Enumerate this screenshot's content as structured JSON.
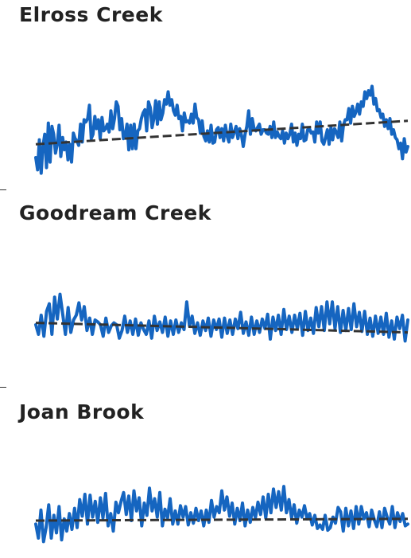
{
  "chart_data": [
    {
      "type": "line",
      "title": "Elross Creek",
      "series": [
        {
          "values": [
            -2.0,
            -3.1,
            -0.4,
            -3.4,
            -1.0,
            0.1,
            -2.9,
            1.1,
            -2.4,
            0.8,
            0.1,
            -1.6,
            -0.8,
            0.9,
            -1.9,
            -0.2,
            -1.3,
            -0.6,
            -2.2,
            -0.8,
            -2.4,
            0.2,
            -0.3,
            -0.5,
            -0.9,
            1.0,
            -0.6,
            1.4,
            1.2,
            1.5,
            2.7,
            -0.3,
            0.1,
            1.7,
            0.6,
            1.4,
            -0.3,
            1.6,
            0.4,
            0.6,
            1.0,
            0.3,
            2.2,
            0.6,
            1.5,
            3.0,
            2.6,
            0.5,
            1.5,
            -0.3,
            0.0,
            1.0,
            -1.3,
            0.9,
            -1.2,
            1.0,
            -1.2,
            0.4,
            0.6,
            1.5,
            2.0,
            2.3,
            0.4,
            3.0,
            2.5,
            0.7,
            1.5,
            3.1,
            1.0,
            3.0,
            1.4,
            2.0,
            3.2,
            2.8,
            3.9,
            2.7,
            3.2,
            2.2,
            1.8,
            2.7,
            1.5,
            1.7,
            0.4,
            2.0,
            1.2,
            1.3,
            1.1,
            1.9,
            1.1,
            2.8,
            1.6,
            1.4,
            0.2,
            1.3,
            -0.1,
            -0.5,
            0.4,
            -0.6,
            0.9,
            -0.7,
            -0.6,
            0.5,
            0.7,
            -0.2,
            0.6,
            -0.5,
            0.9,
            -0.1,
            -0.6,
            1.0,
            -0.2,
            0.3,
            0.8,
            -0.3,
            0.6,
            0.0,
            -1.0,
            0.1,
            0.8,
            2.2,
            0.1,
            1.5,
            0.6,
            0.4,
            0.7,
            1.0,
            0.1,
            0.5,
            0.5,
            0.2,
            0.1,
            0.8,
            -0.2,
            1.2,
            -0.2,
            0.3,
            -0.1,
            -0.3,
            0.4,
            -0.7,
            0.2,
            -0.3,
            0.1,
            1.0,
            -0.6,
            0.2,
            -0.9,
            0.1,
            -0.3,
            1.0,
            -0.5,
            -0.4,
            0.5,
            0.6,
            0.2,
            0.3,
            -0.6,
            1.2,
            0.2,
            1.2,
            -0.5,
            -0.8,
            -0.2,
            0.5,
            -0.8,
            0.7,
            -0.4,
            0.6,
            0.3,
            -0.2,
            1.2,
            -0.5,
            0.9,
            1.4,
            1.4,
            2.4,
            1.1,
            2.6,
            1.7,
            2.1,
            2.8,
            1.9,
            3.0,
            2.6,
            3.9,
            3.3,
            4.0,
            3.6,
            4.4,
            2.8,
            3.3,
            2.2,
            2.3,
            1.6,
            1.9,
            0.8,
            1.4,
            0.6,
            1.5,
            0.1,
            0.5,
            -0.2,
            -0.4,
            -1.2,
            -0.7,
            -2.1,
            -0.3,
            -1.5,
            -1.0
          ]
        },
        {
          "name": "trend",
          "values_start": -0.8,
          "values_end": 1.3
        }
      ]
    },
    {
      "type": "line",
      "title": "Goodream Creek",
      "series": [
        {
          "values": [
            0.0,
            -1.0,
            1.0,
            -1.2,
            1.4,
            2.2,
            -1.0,
            2.9,
            0.6,
            3.2,
            1.1,
            -1.0,
            1.8,
            -0.8,
            0.5,
            1.0,
            2.3,
            0.5,
            1.9,
            -0.6,
            0.7,
            -1.0,
            0.5,
            0.3,
            0.0,
            -1.2,
            0.7,
            -0.8,
            -0.1,
            0.2,
            0.0,
            -1.4,
            -0.6,
            0.9,
            -0.8,
            0.4,
            -1.0,
            0.6,
            -1.1,
            0.2,
            -0.5,
            -1.0,
            0.4,
            -1.4,
            0.9,
            -0.6,
            0.3,
            -0.8,
            0.8,
            -1.2,
            0.4,
            -1.0,
            0.5,
            -0.8,
            0.2,
            -0.5,
            2.4,
            -0.1,
            0.9,
            -0.9,
            0.2,
            -1.1,
            0.4,
            -0.6,
            0.7,
            -1.2,
            0.5,
            -0.5,
            0.6,
            -1.3,
            0.7,
            -0.9,
            0.5,
            -1.0,
            0.6,
            -0.4,
            1.3,
            -0.9,
            0.3,
            -1.1,
            0.8,
            -1.0,
            0.4,
            -0.8,
            0.6,
            -0.4,
            1.1,
            -1.5,
            0.8,
            -0.6,
            1.0,
            -1.0,
            1.6,
            -0.5,
            0.9,
            -0.8,
            1.0,
            -0.4,
            1.2,
            -1.1,
            1.4,
            -0.6,
            0.7,
            -0.9,
            1.8,
            -0.2,
            1.9,
            -0.6,
            2.4,
            0.1,
            2.4,
            -0.4,
            1.9,
            -0.8,
            1.5,
            -0.6,
            1.7,
            -0.5,
            2.2,
            -0.2,
            1.3,
            -0.7,
            1.4,
            -1.0,
            0.7,
            -1.2,
            0.9,
            -0.9,
            0.8,
            -1.0,
            1.2,
            -1.3,
            0.4,
            -1.5,
            0.8,
            -0.4,
            1.0,
            -1.7,
            0.5
          ]
        },
        {
          "name": "trend",
          "values_start": 0.2,
          "values_end": -0.8
        }
      ]
    },
    {
      "type": "line",
      "title": "Joan Brook",
      "series": [
        {
          "values": [
            -0.4,
            -2.0,
            1.2,
            -2.4,
            -0.8,
            1.8,
            -2.0,
            0.6,
            -1.4,
            1.6,
            -2.2,
            0.2,
            -1.2,
            0.8,
            -1.0,
            1.4,
            -0.8,
            2.4,
            0.5,
            3.0,
            -0.4,
            2.9,
            0.4,
            2.2,
            -0.2,
            2.6,
            0.3,
            3.1,
            -0.6,
            0.8,
            -1.2,
            2.1,
            0.9,
            2.2,
            3.2,
            0.7,
            2.8,
            0.0,
            3.4,
            1.1,
            2.6,
            -0.6,
            2.0,
            0.6,
            3.7,
            1.1,
            2.5,
            0.4,
            3.2,
            -0.6,
            1.3,
            0.3,
            2.5,
            -0.4,
            1.1,
            -0.4,
            1.7,
            0.4,
            1.6,
            -0.5,
            0.9,
            -0.3,
            1.4,
            0.0,
            1.1,
            -0.6,
            1.2,
            -0.2,
            2.3,
            0.4,
            1.6,
            0.9,
            3.4,
            1.2,
            2.7,
            0.5,
            2.0,
            -0.4,
            1.4,
            0.0,
            2.0,
            -0.6,
            1.2,
            -0.2,
            1.5,
            0.3,
            2.1,
            0.7,
            2.7,
            0.3,
            3.0,
            0.9,
            3.6,
            1.5,
            3.3,
            1.2,
            3.9,
            0.9,
            2.4,
            0.3,
            1.8,
            -0.3,
            1.2,
            0.4,
            1.7,
            0.2,
            0.8,
            -0.5,
            0.6,
            -0.9,
            -0.5,
            -1.0,
            0.6,
            -1.1,
            -0.8,
            0.4,
            -0.3,
            1.5,
            1.0,
            -1.2,
            1.4,
            -0.6,
            1.1,
            -0.9,
            1.6,
            -0.4,
            1.6,
            0.2,
            0.9,
            -0.7,
            1.2,
            0.1,
            -0.7,
            1.0,
            -0.8,
            1.4,
            0.4,
            -0.4,
            1.6,
            -0.8,
            0.9,
            -0.1,
            0.8,
            -0.6,
            -0.4
          ]
        },
        {
          "name": "trend",
          "values_start": 0.0,
          "values_end": 0.2
        }
      ]
    }
  ],
  "colors": {
    "series": "#1565c0",
    "trend": "#333333"
  }
}
